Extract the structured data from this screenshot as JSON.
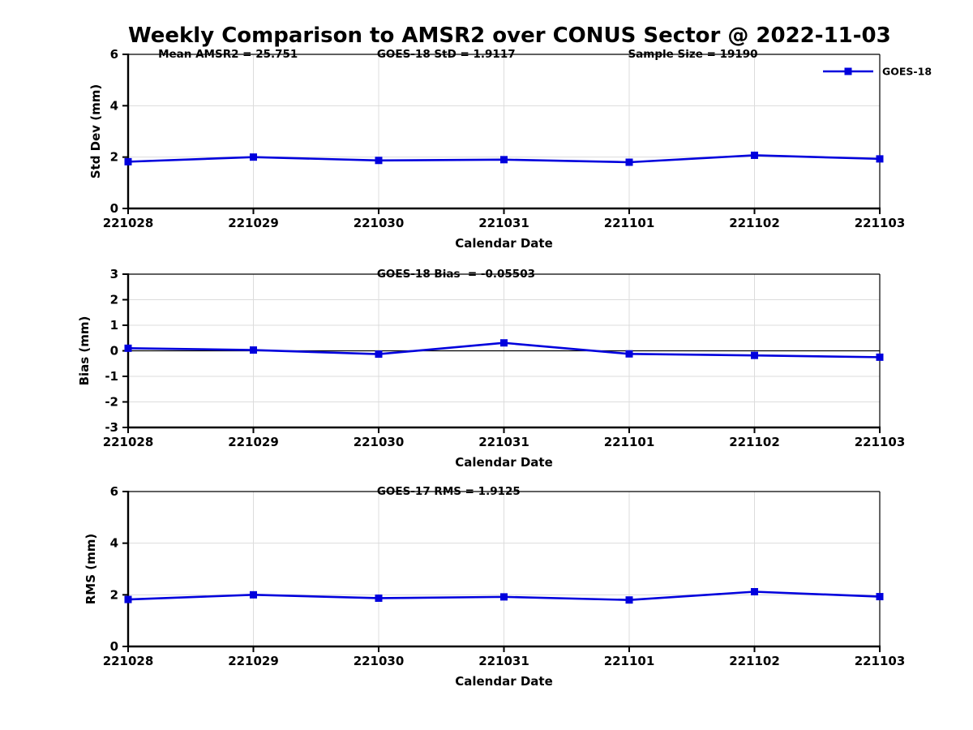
{
  "title": "Weekly Comparison to AMSR2 over CONUS Sector @ 2022-11-03",
  "colors": {
    "line": "#0000dd",
    "grid": "#dcdcdc",
    "axis": "#000000",
    "background": "#ffffff",
    "text": "#000000"
  },
  "chart_data": [
    {
      "type": "line",
      "ylabel": "Std Dev (mm)",
      "xlabel": "Calendar Date",
      "ylim": [
        0,
        6
      ],
      "yticks": [
        0,
        2,
        4,
        6
      ],
      "grid": true,
      "zero_line": false,
      "categories": [
        "221028",
        "221029",
        "221030",
        "221031",
        "221101",
        "221102",
        "221103"
      ],
      "series": [
        {
          "name": "GOES-18",
          "color": "#0000dd",
          "marker": "square",
          "values": [
            1.82,
            2.0,
            1.87,
            1.9,
            1.8,
            2.07,
            1.93
          ]
        }
      ],
      "annotations": [
        {
          "text": "Mean AMSR2 = 25.751",
          "xfrac": 0.04
        },
        {
          "text": "GOES-18 StD = 1.9117",
          "xfrac": 0.331
        },
        {
          "text": "Sample Size = 19190",
          "xfrac": 0.665
        }
      ],
      "legend": {
        "show": true,
        "position": "top-right-outside",
        "entries": [
          "GOES-18"
        ]
      }
    },
    {
      "type": "line",
      "ylabel": "Bias (mm)",
      "xlabel": "Calendar Date",
      "ylim": [
        -3,
        3
      ],
      "yticks": [
        -3,
        -2,
        -1,
        0,
        1,
        2,
        3
      ],
      "grid": true,
      "zero_line": true,
      "categories": [
        "221028",
        "221029",
        "221030",
        "221031",
        "221101",
        "221102",
        "221103"
      ],
      "series": [
        {
          "name": "GOES-18",
          "color": "#0000dd",
          "marker": "square",
          "values": [
            0.1,
            0.03,
            -0.13,
            0.31,
            -0.12,
            -0.18,
            -0.25
          ]
        }
      ],
      "annotations": [
        {
          "text": "GOES-18 Bias  = -0.05503",
          "xfrac": 0.331
        }
      ],
      "legend": {
        "show": false,
        "entries": []
      }
    },
    {
      "type": "line",
      "ylabel": "RMS (mm)",
      "xlabel": "Calendar Date",
      "ylim": [
        0,
        6
      ],
      "yticks": [
        0,
        2,
        4,
        6
      ],
      "grid": true,
      "zero_line": false,
      "categories": [
        "221028",
        "221029",
        "221030",
        "221031",
        "221101",
        "221102",
        "221103"
      ],
      "series": [
        {
          "name": "GOES-18",
          "color": "#0000dd",
          "marker": "square",
          "values": [
            1.82,
            2.0,
            1.87,
            1.92,
            1.8,
            2.12,
            1.93
          ]
        }
      ],
      "annotations": [
        {
          "text": "GOES-17 RMS = 1.9125",
          "xfrac": 0.331
        }
      ],
      "legend": {
        "show": false,
        "entries": []
      }
    }
  ]
}
